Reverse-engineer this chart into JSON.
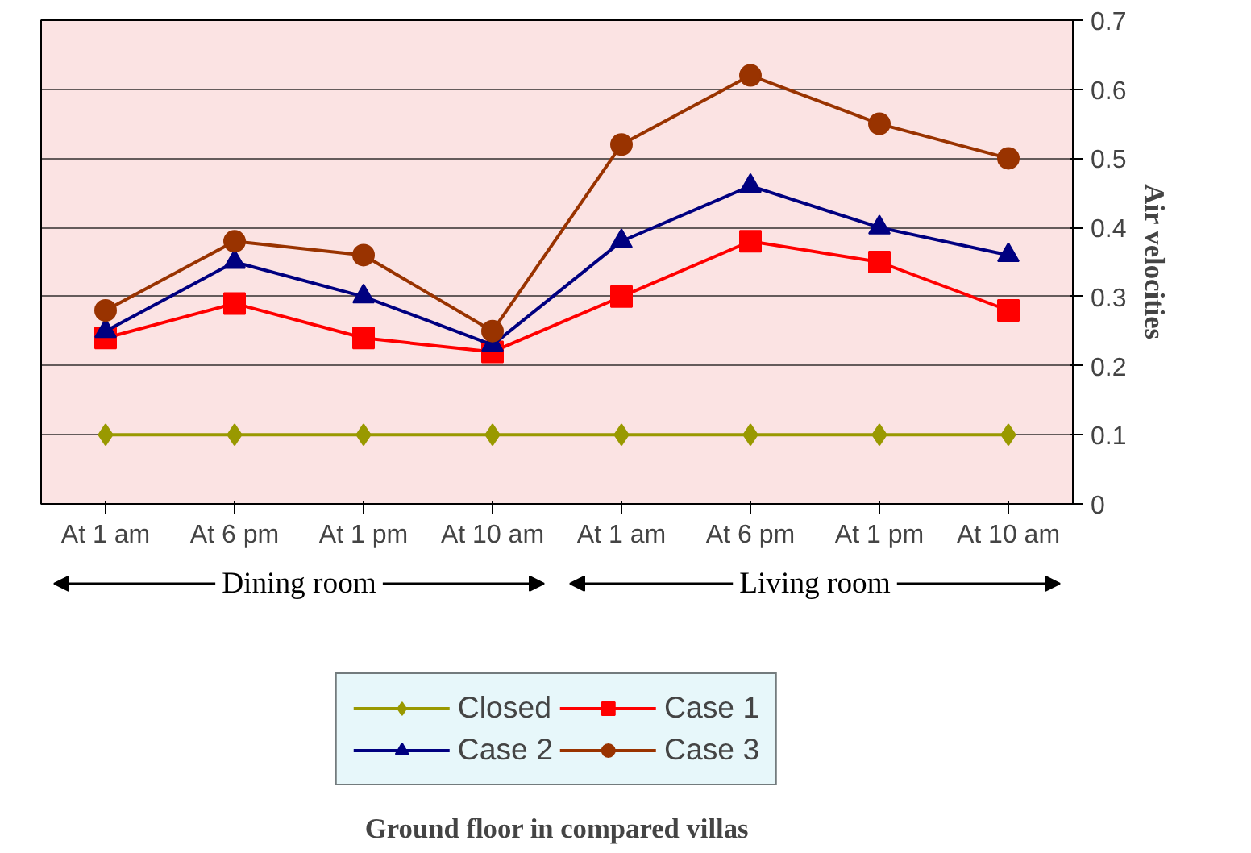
{
  "chart_data": {
    "type": "line",
    "title": "Ground floor in compared villas",
    "ylabel": "Air velocities",
    "categories": [
      "At 1 am",
      "At 6 pm",
      "At 1 pm",
      "At 10 am",
      "At 1 am",
      "At 6 pm",
      "At 1 pm",
      "At 10 am"
    ],
    "series": [
      {
        "name": "Closed",
        "color": "#999900",
        "marker": "diamond",
        "values": [
          0.1,
          0.1,
          0.1,
          0.1,
          0.1,
          0.1,
          0.1,
          0.1
        ]
      },
      {
        "name": "Case 1",
        "color": "#ff0000",
        "marker": "square",
        "values": [
          0.24,
          0.29,
          0.24,
          0.22,
          0.3,
          0.38,
          0.35,
          0.28
        ]
      },
      {
        "name": "Case 2",
        "color": "#000080",
        "marker": "triangle",
        "values": [
          0.25,
          0.35,
          0.3,
          0.23,
          0.38,
          0.46,
          0.4,
          0.36
        ]
      },
      {
        "name": "Case 3",
        "color": "#993300",
        "marker": "circle",
        "values": [
          0.28,
          0.38,
          0.36,
          0.25,
          0.52,
          0.62,
          0.55,
          0.5
        ]
      }
    ],
    "annotations": [
      "Dining room",
      "Living room"
    ],
    "ylim": [
      0,
      0.7
    ],
    "yticks": [
      0,
      0.1,
      0.2,
      0.3,
      0.4,
      0.5,
      0.6,
      0.7
    ],
    "grid": "y",
    "legend": "bottom"
  }
}
